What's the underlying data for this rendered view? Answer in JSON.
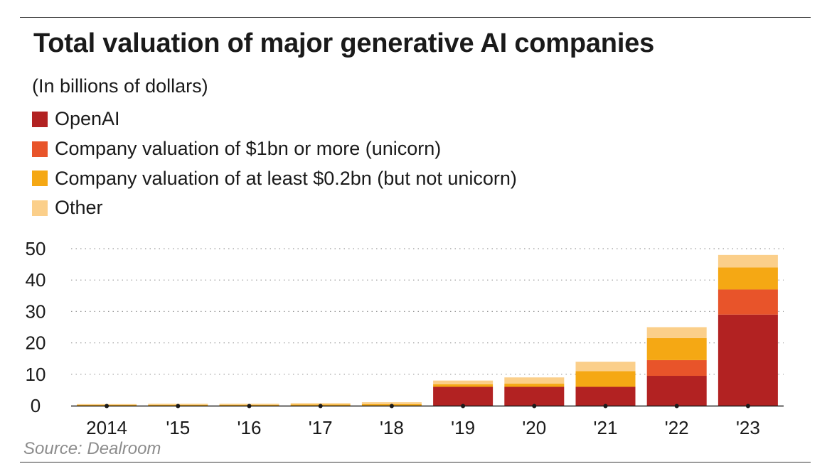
{
  "chart_data": {
    "type": "bar",
    "stacked": true,
    "title": "Total valuation of major generative AI companies",
    "subtitle": "(In billions of dollars)",
    "categories": [
      "2014",
      "'15",
      "'16",
      "'17",
      "'18",
      "'19",
      "'20",
      "'21",
      "'22",
      "'23"
    ],
    "series": [
      {
        "name": "OpenAI",
        "color": "#b22222",
        "values": [
          0,
          0,
          0,
          0,
          0,
          6,
          6,
          6,
          9.5,
          29
        ]
      },
      {
        "name": "Company valuation of $1bn or more (unicorn)",
        "color": "#e8542a",
        "values": [
          0,
          0,
          0,
          0,
          0,
          0,
          0,
          0,
          5,
          8
        ]
      },
      {
        "name": "Company valuation of at least $0.2bn (but not unicorn)",
        "color": "#f5a814",
        "values": [
          0.3,
          0.3,
          0.3,
          0.4,
          0.5,
          0.8,
          1,
          5,
          7,
          7
        ]
      },
      {
        "name": "Other",
        "color": "#fbcf8a",
        "values": [
          0.2,
          0.3,
          0.3,
          0.4,
          0.6,
          1.2,
          2,
          3,
          3.5,
          4
        ]
      }
    ],
    "yticks": [
      0,
      10,
      20,
      30,
      40,
      50
    ],
    "ylim": [
      0,
      50
    ],
    "xlabel": "",
    "ylabel": "",
    "grid": "dotted horizontal",
    "legend_position": "top-left",
    "source": "Source: Dealroom"
  }
}
